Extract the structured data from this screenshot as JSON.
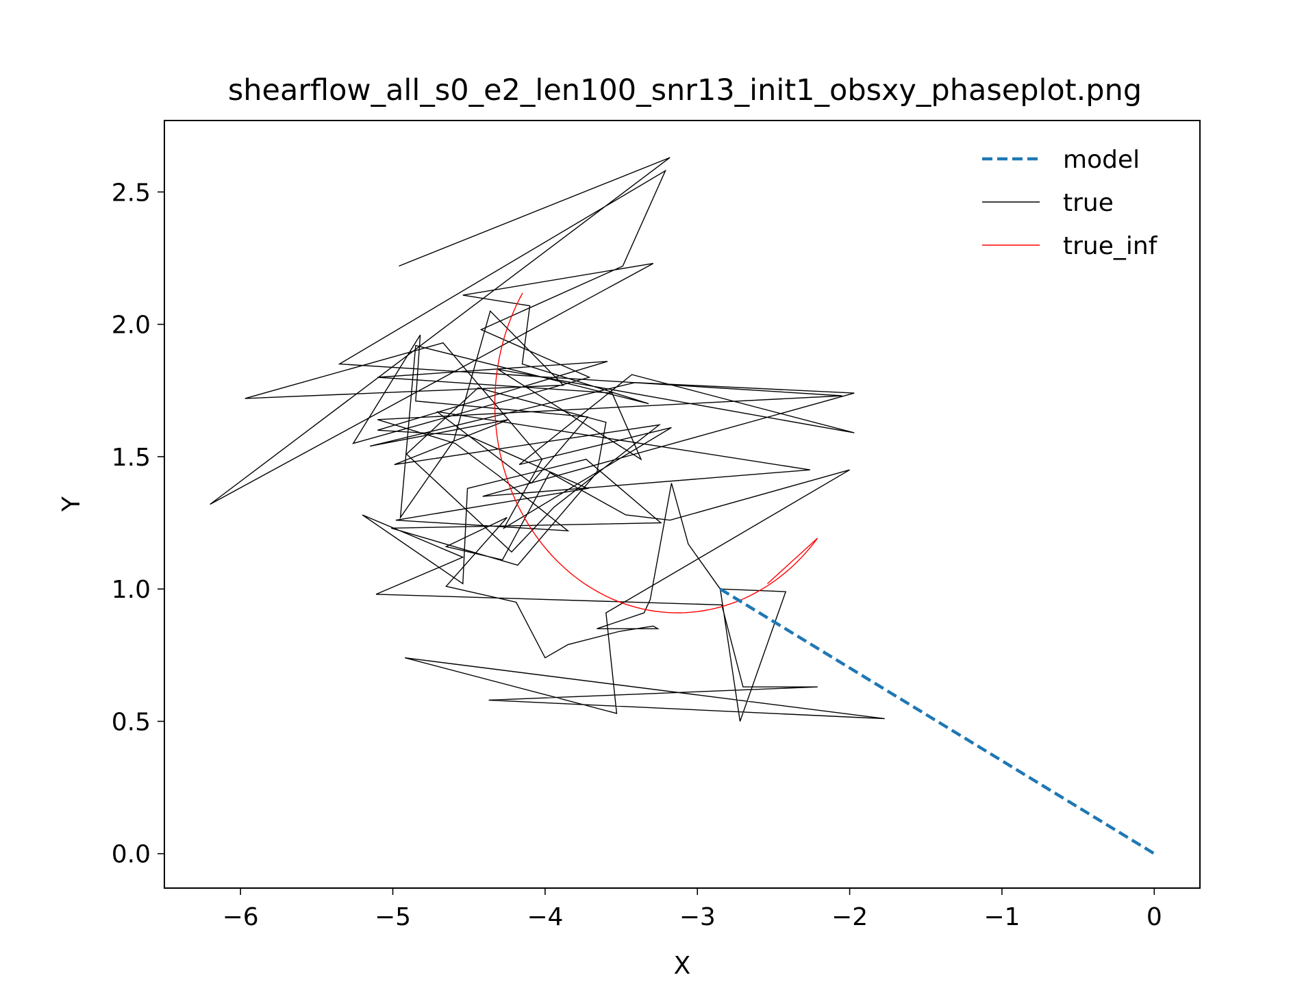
{
  "chart_data": {
    "type": "line",
    "title": "shearflow_all_s0_e2_len100_snr13_init1_obsxy_phaseplot.png",
    "xlabel": "X",
    "ylabel": "Y",
    "xlim": [
      -6.5,
      0.3
    ],
    "ylim": [
      -0.13,
      2.77
    ],
    "xticks": [
      -6,
      -5,
      -4,
      -3,
      -2,
      -1,
      0
    ],
    "xtick_labels": [
      "−6",
      "−5",
      "−4",
      "−3",
      "−2",
      "−1",
      "0"
    ],
    "yticks": [
      0.0,
      0.5,
      1.0,
      1.5,
      2.0,
      2.5
    ],
    "ytick_labels": [
      "0.0",
      "0.5",
      "1.0",
      "1.5",
      "2.0",
      "2.5"
    ],
    "grid": false,
    "legend_position": "top-right",
    "series": [
      {
        "name": "model",
        "color": "#1f77b4",
        "style": "dashed",
        "x": [
          -2.85,
          0.0
        ],
        "y": [
          1.0,
          0.0
        ]
      },
      {
        "name": "true",
        "color": "#000000",
        "style": "solid",
        "x": [
          -2.85,
          -2.42,
          -2.72,
          -2.85,
          -3.06,
          -3.17,
          -3.31,
          -3.35,
          -3.66,
          -3.26,
          -3.29,
          -3.51,
          -3.85,
          -4.0,
          -4.19,
          -4.65,
          -4.25,
          -4.65,
          -4.28,
          -3.97,
          -3.47,
          -3.18,
          -2.0,
          -3.6,
          -3.53,
          -4.92,
          -1.77,
          -4.37,
          -2.21,
          -2.7,
          -2.84,
          -5.11,
          -4.54,
          -5.2,
          -4.54,
          -4.51,
          -3.73,
          -3.24,
          -5.01,
          -4.18,
          -3.66,
          -3.6,
          -4.44,
          -4.91,
          -4.22,
          -3.94,
          -3.25,
          -4.99,
          -4.24,
          -5.15,
          -3.41,
          -1.97,
          -4.41,
          -2.26,
          -4.71,
          -4.09,
          -3.72,
          -4.85,
          -4.82,
          -5.26,
          -3.71,
          -4.42,
          -3.49,
          -3.21,
          -5.35,
          -2.05,
          -5.1,
          -4.59,
          -4.31,
          -3.85,
          -4.98,
          -3.72,
          -4.51,
          -5.1,
          -3.59,
          -5.1,
          -3.56,
          -3.37,
          -4.31,
          -1.97,
          -3.43,
          -4.17,
          -3.17,
          -4.27,
          -4.02,
          -4.67,
          -5.97,
          -3.88,
          -4.36,
          -4.6,
          -4.95,
          -4.85,
          -3.32,
          -4.15,
          -4.1,
          -4.54,
          -3.29,
          -6.2,
          -3.18,
          -4.96
        ],
        "y": [
          1.0,
          0.99,
          0.5,
          1.0,
          1.17,
          1.4,
          0.96,
          0.91,
          0.85,
          0.85,
          0.86,
          0.84,
          0.79,
          0.74,
          0.95,
          1.01,
          1.27,
          1.16,
          1.11,
          1.44,
          1.28,
          1.26,
          1.45,
          0.91,
          0.53,
          0.74,
          0.51,
          0.58,
          0.63,
          0.63,
          0.94,
          0.98,
          1.12,
          1.28,
          1.02,
          1.38,
          1.49,
          1.25,
          1.23,
          1.09,
          1.44,
          1.63,
          1.76,
          1.51,
          1.14,
          1.31,
          1.62,
          1.47,
          1.64,
          1.54,
          1.78,
          1.74,
          1.35,
          1.45,
          1.67,
          1.4,
          1.65,
          1.71,
          1.96,
          1.55,
          1.8,
          1.98,
          2.22,
          2.58,
          1.85,
          1.73,
          1.64,
          1.55,
          1.43,
          1.22,
          1.26,
          1.38,
          1.58,
          1.6,
          1.86,
          1.8,
          1.74,
          1.49,
          1.83,
          1.59,
          1.81,
          1.47,
          1.61,
          1.23,
          1.49,
          1.93,
          1.72,
          1.77,
          2.05,
          1.56,
          1.27,
          1.92,
          1.7,
          1.85,
          2.07,
          2.11,
          2.23,
          1.32,
          2.63,
          2.22
        ]
      },
      {
        "name": "true_inf",
        "color": "#ff0000",
        "style": "solid",
        "arc": {
          "center_x": -3.13,
          "center_y": 1.7,
          "radius_x": 1.2,
          "radius_y": 0.79,
          "theta_start_deg": 148,
          "theta_end_deg": 320,
          "closing_point": [
            -2.54,
            1.02
          ]
        }
      }
    ]
  }
}
